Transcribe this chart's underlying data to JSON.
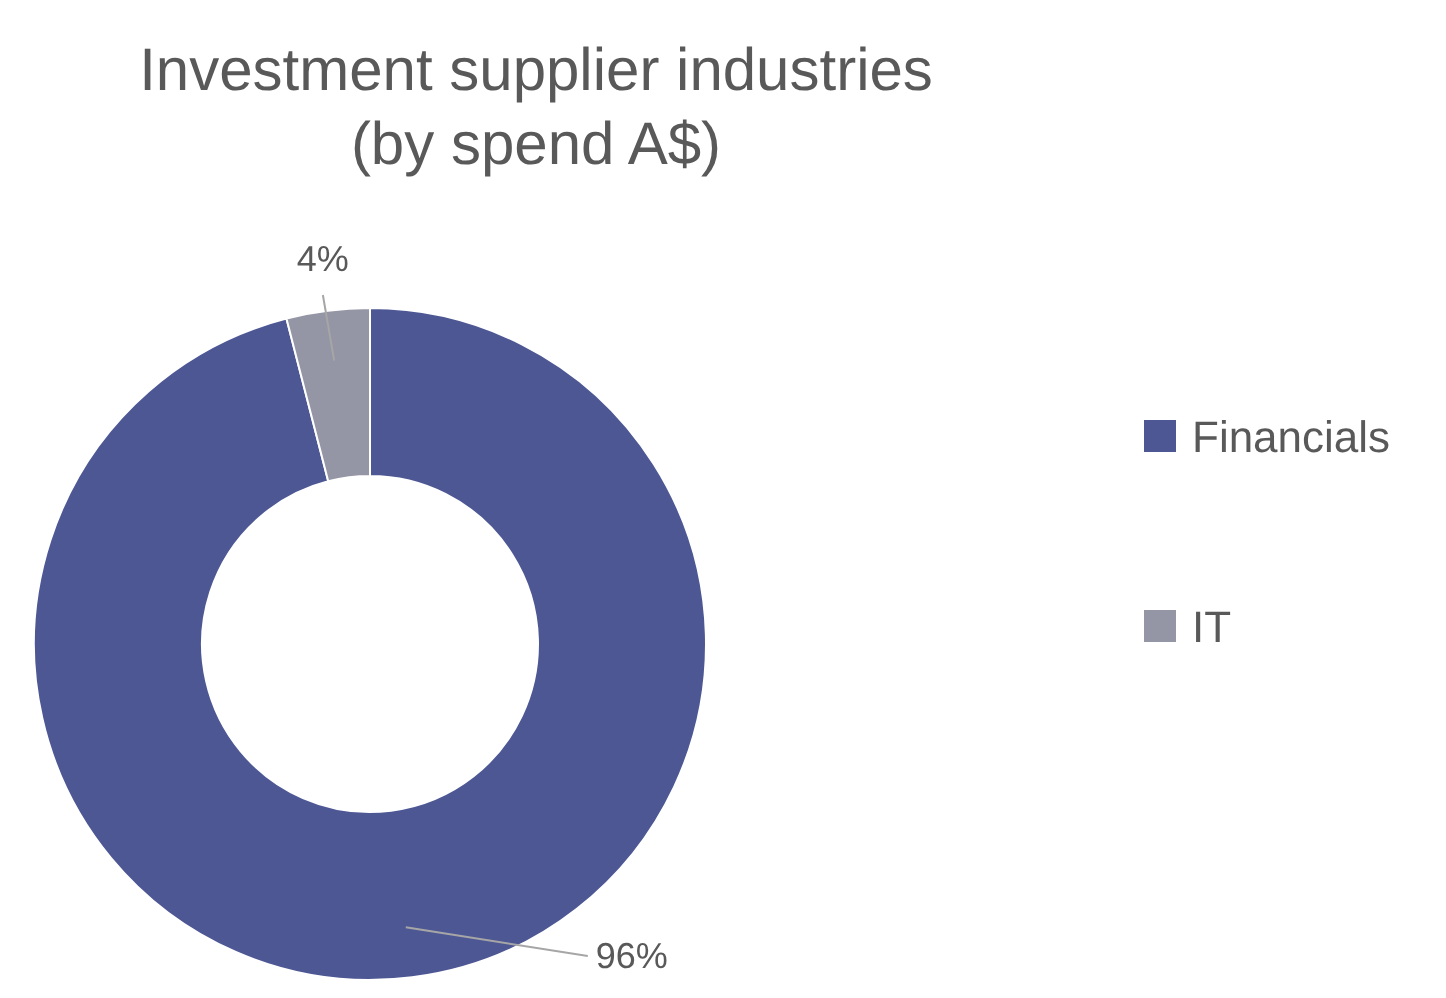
{
  "chart_data": {
    "type": "donut",
    "title": "Investment supplier industries (by spend A$)",
    "categories": [
      "Financials",
      "IT"
    ],
    "values": [
      96,
      4
    ],
    "colors": [
      "#4d5794",
      "#9495a5"
    ],
    "value_labels": [
      "96%",
      "4%"
    ],
    "legend": "right"
  }
}
